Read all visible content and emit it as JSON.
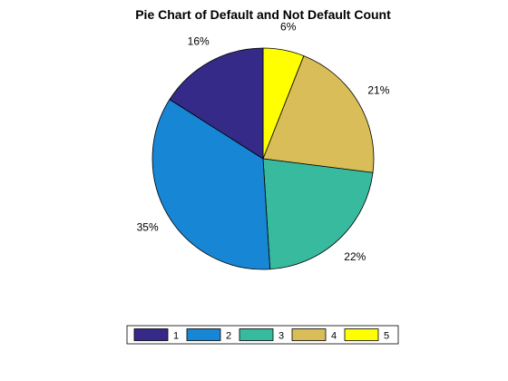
{
  "chart_data": {
    "type": "pie",
    "title": "Pie Chart of Default and Not Default Count",
    "start_angle_deg": 90,
    "direction": "clockwise",
    "slices": [
      {
        "label": "5",
        "value": 6,
        "pct_label": "6%",
        "color": "#FFFF00"
      },
      {
        "label": "4",
        "value": 21,
        "pct_label": "21%",
        "color": "#D9BD58"
      },
      {
        "label": "3",
        "value": 22,
        "pct_label": "22%",
        "color": "#38BA9E"
      },
      {
        "label": "2",
        "value": 35,
        "pct_label": "35%",
        "color": "#1786D4"
      },
      {
        "label": "1",
        "value": 16,
        "pct_label": "16%",
        "color": "#352A87"
      }
    ],
    "legend": {
      "placement": "bottom",
      "orientation": "horizontal",
      "order": [
        "1",
        "2",
        "3",
        "4",
        "5"
      ]
    }
  }
}
